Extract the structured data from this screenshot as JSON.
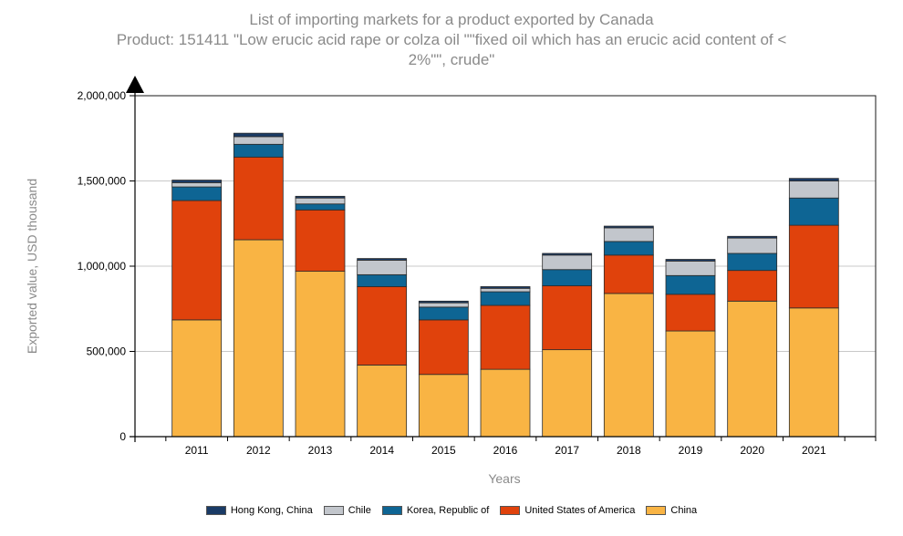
{
  "chart_data": {
    "type": "bar",
    "stacked": true,
    "title": "List of importing markets for a product exported by Canada",
    "subtitle_line1": "Product: 151411 \"Low erucic acid rape or colza oil \"\"fixed oil which has an erucic acid content of <",
    "subtitle_line2": "2%\"\", crude\"",
    "xlabel": "Years",
    "ylabel": "Exported value, USD thousand",
    "ylim": [
      0,
      2000000
    ],
    "yticks": [
      0,
      500000,
      1000000,
      1500000,
      2000000
    ],
    "ytick_labels": [
      "0",
      "500,000",
      "1,000,000",
      "1,500,000",
      "2,000,000"
    ],
    "categories": [
      "2011",
      "2012",
      "2013",
      "2014",
      "2015",
      "2016",
      "2017",
      "2018",
      "2019",
      "2020",
      "2021"
    ],
    "series": [
      {
        "name": "China",
        "color": "#f9b444",
        "values": [
          685000,
          1155000,
          970000,
          420000,
          365000,
          395000,
          510000,
          840000,
          620000,
          795000,
          755000
        ]
      },
      {
        "name": "United States of America",
        "color": "#e0420c",
        "values": [
          700000,
          485000,
          360000,
          460000,
          320000,
          375000,
          375000,
          225000,
          215000,
          180000,
          485000
        ]
      },
      {
        "name": "Korea, Republic of",
        "color": "#0e6594",
        "values": [
          80000,
          75000,
          35000,
          70000,
          75000,
          80000,
          95000,
          80000,
          110000,
          100000,
          160000
        ]
      },
      {
        "name": "Chile",
        "color": "#c2c6cc",
        "values": [
          25000,
          45000,
          35000,
          85000,
          25000,
          20000,
          85000,
          80000,
          85000,
          90000,
          100000
        ]
      },
      {
        "name": "Hong Kong, China",
        "color": "#1a3b66",
        "values": [
          15000,
          20000,
          10000,
          10000,
          10000,
          10000,
          10000,
          10000,
          10000,
          10000,
          15000
        ]
      }
    ],
    "legend_order": [
      "Hong Kong, China",
      "Chile",
      "Korea, Republic of",
      "United States of America",
      "China"
    ],
    "grid": true,
    "legend_position": "bottom"
  }
}
